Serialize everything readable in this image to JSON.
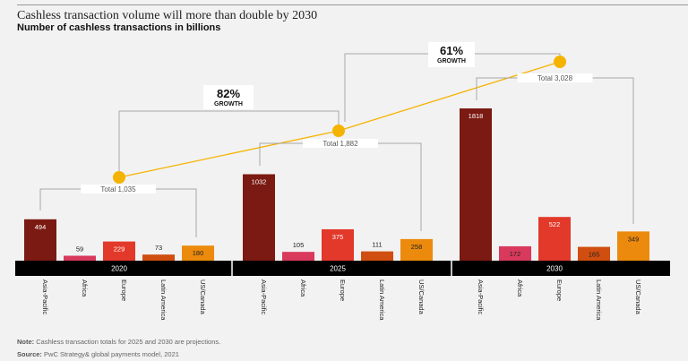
{
  "chart_data": {
    "type": "bar",
    "title": "Cashless transaction volume will more than double by 2030",
    "subtitle": "Number of cashless transactions in billions",
    "categories": [
      "Asia-Pacific",
      "Africa",
      "Europe",
      "Latin America",
      "US/Canada"
    ],
    "groups": [
      {
        "year": "2020",
        "values": [
          494,
          59,
          229,
          73,
          180
        ],
        "total_label": "Total 1,035",
        "total": 1035
      },
      {
        "year": "2025",
        "values": [
          1032,
          105,
          375,
          111,
          258
        ],
        "total_label": "Total 1,882",
        "total": 1882
      },
      {
        "year": "2030",
        "values": [
          1818,
          172,
          522,
          165,
          349
        ],
        "total_label": "Total 3,028",
        "total": 3028
      }
    ],
    "growth": [
      {
        "pct": "82%",
        "label": "GROWTH"
      },
      {
        "pct": "61%",
        "label": "GROWTH"
      }
    ],
    "colors": [
      "#7a1a12",
      "#d9395c",
      "#e2392a",
      "#cf4e10",
      "#ec8a0d"
    ],
    "trend_color": "#f5b301",
    "grid": false
  },
  "footer": {
    "note_label": "Note:",
    "note": " Cashless transaction totals for 2025 and 2030 are projections.",
    "source_label": "Source:",
    "source": " PwC Strategy& global payments model, 2021"
  }
}
